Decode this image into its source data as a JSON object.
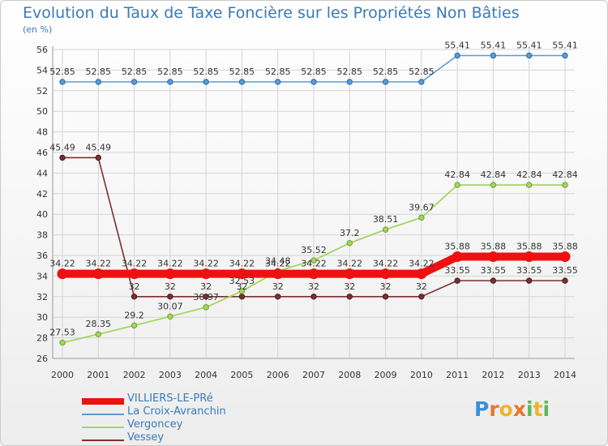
{
  "title": "Evolution du Taux de Taxe Foncière sur les Propriétés Non Bâties",
  "unit": "(en %)",
  "chart_data": {
    "type": "line",
    "title": "Evolution du Taux de Taxe Foncière sur les Propriétés Non Bâties",
    "ylabel": "(en %)",
    "xlabel": "",
    "ylim": [
      26,
      56
    ],
    "yticks": [
      "26",
      "28",
      "30",
      "32",
      "34",
      "36",
      "38",
      "40",
      "42",
      "44",
      "46",
      "48",
      "50",
      "52",
      "54",
      "56"
    ],
    "categories": [
      "2000",
      "2001",
      "2002",
      "2003",
      "2004",
      "2005",
      "2006",
      "2007",
      "2008",
      "2009",
      "2010",
      "2011",
      "2012",
      "2013",
      "2014"
    ],
    "grid": true,
    "legend_position": "bottom-left",
    "series": [
      {
        "name": "VILLIERS-LE-PRé",
        "color": "#ee1111",
        "values": [
          34.22,
          34.22,
          34.22,
          34.22,
          34.22,
          34.22,
          34.22,
          34.22,
          34.22,
          34.22,
          34.22,
          35.88,
          35.88,
          35.88,
          35.88
        ],
        "labels": [
          "34.22",
          "34.22",
          "34.22",
          "34.22",
          "34.22",
          "34.22",
          "34.22",
          "34.22",
          "34.22",
          "34.22",
          "34.22",
          "35.88",
          "35.88",
          "35.88",
          "35.88"
        ]
      },
      {
        "name": "La Croix-Avranchin",
        "color": "#5b9bd5",
        "values": [
          52.85,
          52.85,
          52.85,
          52.85,
          52.85,
          52.85,
          52.85,
          52.85,
          52.85,
          52.85,
          52.85,
          55.41,
          55.41,
          55.41,
          55.41
        ],
        "labels": [
          "52.85",
          "52.85",
          "52.85",
          "52.85",
          "52.85",
          "52.85",
          "52.85",
          "52.85",
          "52.85",
          "52.85",
          "52.85",
          "55.41",
          "55.41",
          "55.41",
          "55.41"
        ]
      },
      {
        "name": "Vergoncey",
        "color": "#a4d65e",
        "values": [
          27.53,
          28.35,
          29.2,
          30.07,
          30.97,
          32.53,
          34.48,
          35.52,
          37.2,
          38.51,
          39.67,
          42.84,
          42.84,
          42.84,
          42.84
        ],
        "labels": [
          "27.53",
          "28.35",
          "29.2",
          "30.07",
          "30.97",
          "32.53",
          "34.48",
          "35.52",
          "37.2",
          "38.51",
          "39.67",
          "42.84",
          "42.84",
          "42.84",
          "42.84"
        ]
      },
      {
        "name": "Vessey",
        "color": "#7b3030",
        "values": [
          45.49,
          45.49,
          32,
          32,
          32,
          32,
          32,
          32,
          32,
          32,
          32,
          33.55,
          33.55,
          33.55,
          33.55
        ],
        "labels": [
          "45.49",
          "45.49",
          "32",
          "32",
          "32",
          "32",
          "32",
          "32",
          "32",
          "32",
          "32",
          "33.55",
          "33.55",
          "33.55",
          "33.55"
        ]
      }
    ]
  },
  "logo": {
    "letters": [
      "P",
      "r",
      "o",
      "x",
      "i",
      "t",
      "i"
    ],
    "colors": [
      "#3b8fd8",
      "#e8762a",
      "#f0b429",
      "#e8762a",
      "#5bb85b",
      "#f0b429",
      "#5bb85b"
    ]
  }
}
